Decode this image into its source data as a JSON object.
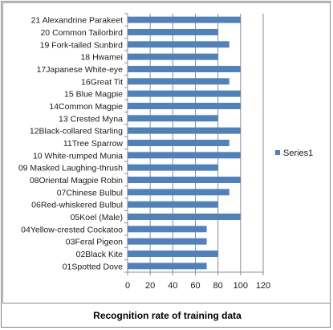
{
  "chart_data": {
    "type": "bar",
    "orientation": "horizontal",
    "title": "Recognition rate of training data",
    "categories": [
      "21 Alexandrine Parakeet",
      "20 Common Tailorbird",
      "19 Fork-tailed Sunbird",
      "18 Hwamei",
      "17Japanese White-eye",
      "16Great Tit",
      "15 Blue Magpie",
      "14Common Magpie",
      "13 Crested  Myna",
      "12Black-collared Starling",
      "11Tree Sparrow",
      "10 White-rumped Munia",
      "09 Masked Laughing-thrush",
      "08Oriental Magpie Robin",
      "07Chinese Bulbul",
      "06Red-whiskered Bulbul",
      "05Koel (Male)",
      "04Yellow-crested Cockatoo",
      "03Feral Pigeon",
      "02Black Kite",
      "01Spotted Dove"
    ],
    "series": [
      {
        "name": "Series1",
        "values": [
          100,
          80,
          90,
          80,
          100,
          90,
          100,
          100,
          80,
          100,
          90,
          100,
          80,
          100,
          90,
          80,
          100,
          70,
          70,
          80,
          70
        ]
      }
    ],
    "xlim": [
      0,
      120
    ],
    "xticks": [
      "0",
      "20",
      "40",
      "60",
      "80",
      "100",
      "120"
    ],
    "grid": true,
    "legend_position": "right",
    "colors": {
      "bar": "#4f81bd",
      "grid": "#8c8c8c",
      "axis": "#8c8c8c"
    }
  }
}
